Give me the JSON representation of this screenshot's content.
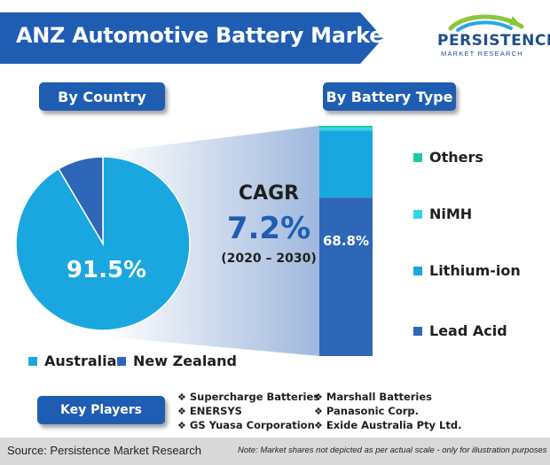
{
  "title": "ANZ Automotive Battery Market",
  "logo": {
    "name": "PERSISTENCE",
    "sub": "MARKET RESEARCH"
  },
  "sections": {
    "by_country": "By Country",
    "by_battery_type": "By Battery Type",
    "key_players": "Key Players"
  },
  "cagr": {
    "label": "CAGR",
    "value": "7.2%",
    "period": "(2020 – 2030)"
  },
  "colors": {
    "brand_blue": "#1f5db3",
    "australia": "#1aa7e0",
    "new_zealand": "#2e67b8",
    "lead_acid": "#2e67b8",
    "lithium_ion": "#1aa7e0",
    "nimh": "#33d6e6",
    "others": "#1fc8a2"
  },
  "chart_data": [
    {
      "type": "pie",
      "categories": [
        "Australia",
        "New Zealand"
      ],
      "values": [
        91.5,
        8.5
      ],
      "data_labels": [
        "91.5%",
        ""
      ]
    },
    {
      "type": "bar",
      "stacked": true,
      "categories": [
        "Lead Acid",
        "Lithium-ion",
        "NiMH",
        "Others"
      ],
      "values": [
        68.8,
        29.2,
        1.2,
        0.8
      ],
      "data_labels": [
        "68.8%",
        "",
        "",
        ""
      ]
    }
  ],
  "legend_country": [
    "Australia",
    "New Zealand"
  ],
  "legend_type": [
    "Others",
    "NiMH",
    "Lithium-ion",
    "Lead Acid"
  ],
  "key_players": [
    "Supercharge Batteries",
    "ENERSYS",
    "GS Yuasa Corporation",
    "Marshall Batteries",
    "Panasonic Corp.",
    "Exide Australia Pty Ltd."
  ],
  "footer": {
    "source": "Source: Persistence Market Research",
    "disclaimer": "Note: Market shares not depicted as per actual scale - only for illustration purposes"
  }
}
